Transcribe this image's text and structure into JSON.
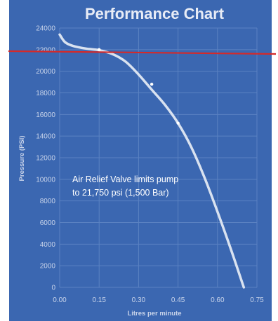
{
  "chart_data": {
    "type": "line",
    "title": "Performance Chart",
    "xlabel": "Litres per minute",
    "ylabel": "Pressure (PSI)",
    "xlim": [
      0,
      0.75
    ],
    "ylim": [
      0,
      24000
    ],
    "x_ticks": [
      "0.00",
      "0.15",
      "0.30",
      "0.45",
      "0.60",
      "0.75"
    ],
    "y_ticks": [
      "0",
      "2000",
      "4000",
      "6000",
      "8000",
      "10000",
      "12000",
      "14000",
      "16000",
      "18000",
      "20000",
      "22000",
      "24000"
    ],
    "grid": true,
    "series": [
      {
        "x": [
          0.0,
          0.02,
          0.05,
          0.1,
          0.15,
          0.2,
          0.25,
          0.3,
          0.35,
          0.4,
          0.45,
          0.5,
          0.55,
          0.6,
          0.65,
          0.7
        ],
        "y": [
          23400,
          22700,
          22350,
          22100,
          21950,
          21600,
          20900,
          19700,
          18300,
          16900,
          15200,
          13000,
          10200,
          7000,
          3600,
          0
        ]
      }
    ],
    "markers": [
      {
        "x": 0.15,
        "y": 22000
      },
      {
        "x": 0.35,
        "y": 18800
      },
      {
        "x": 0.45,
        "y": 15200
      }
    ],
    "reference_line": {
      "color": "#d42a2a"
    },
    "annotation": {
      "line1": "Air Relief Valve limits pump",
      "line2": "to 21,750 psi (1,500 Bar)"
    }
  },
  "colors": {
    "background": "#3b67b1",
    "grid": "#5b82c2",
    "curve": "#d9e2f0",
    "marker": "#ffffff",
    "reference": "#d42a2a"
  }
}
